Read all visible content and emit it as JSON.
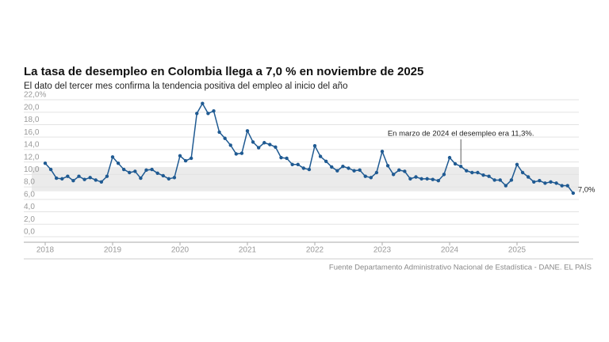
{
  "chart_data": {
    "type": "line",
    "title": "La tasa de desempleo en Colombia llega a 7,0 % en noviembre de 2025",
    "subtitle": "El dato del tercer mes confirma la tendencia positiva del empleo al inicio del año",
    "source": "Fuente Departamento Administrativo Nacional de Estadística - DANE. EL PAÍS",
    "annotation": "En marzo de 2024 el desempleo era 11,3%.",
    "annotation_index": 74,
    "categories": [
      "2018",
      null,
      null,
      null,
      null,
      null,
      null,
      null,
      null,
      null,
      null,
      null,
      "2019",
      null,
      null,
      null,
      null,
      null,
      null,
      null,
      null,
      null,
      null,
      null,
      "2020",
      null,
      null,
      null,
      null,
      null,
      null,
      null,
      null,
      null,
      null,
      null,
      "2021",
      null,
      null,
      null,
      null,
      null,
      null,
      null,
      null,
      null,
      null,
      null,
      "2022",
      null,
      null,
      null,
      null,
      null,
      null,
      null,
      null,
      null,
      null,
      null,
      "2023",
      null,
      null,
      null,
      null,
      null,
      null,
      null,
      null,
      null,
      null,
      null,
      "2024",
      null,
      null,
      null,
      null,
      null,
      null,
      null,
      null,
      null,
      null,
      null,
      "2025",
      null,
      null,
      null,
      null,
      null,
      null,
      null,
      null,
      null,
      null
    ],
    "series": [
      {
        "name": "Tasa de desempleo",
        "color": "#1f5a92",
        "values": [
          11.8,
          10.8,
          9.4,
          9.3,
          9.7,
          9.0,
          9.7,
          9.2,
          9.5,
          9.1,
          8.8,
          9.7,
          12.8,
          11.8,
          10.8,
          10.3,
          10.5,
          9.4,
          10.7,
          10.8,
          10.2,
          9.8,
          9.3,
          9.5,
          13.0,
          12.2,
          12.6,
          19.8,
          21.4,
          19.8,
          20.2,
          16.8,
          15.8,
          14.7,
          13.3,
          13.4,
          17.0,
          15.2,
          14.3,
          15.1,
          14.8,
          14.4,
          12.7,
          12.6,
          11.6,
          11.6,
          11.0,
          10.8,
          14.6,
          12.9,
          12.1,
          11.2,
          10.6,
          11.3,
          11.0,
          10.6,
          10.7,
          9.7,
          9.5,
          10.3,
          13.7,
          11.4,
          10.0,
          10.7,
          10.5,
          9.3,
          9.6,
          9.3,
          9.3,
          9.2,
          9.0,
          10.0,
          12.7,
          11.7,
          11.3,
          10.6,
          10.3,
          10.3,
          9.9,
          9.7,
          9.1,
          9.1,
          8.2,
          9.1,
          11.6,
          10.3,
          9.6,
          8.8,
          9.0,
          8.6,
          8.8,
          8.6,
          8.2,
          8.2,
          7.0
        ],
        "value_labels": [
          null,
          null,
          null,
          null,
          null,
          null,
          null,
          null,
          null,
          null,
          null,
          null,
          null,
          null,
          null,
          null,
          null,
          null,
          null,
          null,
          null,
          null,
          null,
          null,
          null,
          null,
          null,
          null,
          null,
          null,
          null,
          null,
          null,
          null,
          null,
          null,
          null,
          null,
          null,
          null,
          null,
          null,
          null,
          null,
          null,
          null,
          null,
          null,
          null,
          null,
          null,
          null,
          null,
          null,
          null,
          null,
          null,
          null,
          null,
          null,
          null,
          null,
          null,
          null,
          null,
          null,
          null,
          null,
          null,
          null,
          null,
          null,
          null,
          null,
          null,
          null,
          null,
          null,
          null,
          null,
          null,
          null,
          null,
          null,
          null,
          null,
          null,
          null,
          null,
          null,
          null,
          null,
          null,
          null,
          "7,0%"
        ]
      }
    ],
    "shaded_range": [
      7.3,
      11.2
    ],
    "ylim": [
      0,
      22
    ],
    "yticks": [
      {
        "value": 0,
        "label": "0,0"
      },
      {
        "value": 2,
        "label": "2,0"
      },
      {
        "value": 4,
        "label": "4,0"
      },
      {
        "value": 6,
        "label": "6,0"
      },
      {
        "value": 8,
        "label": "8,0"
      },
      {
        "value": 10,
        "label": "10,0"
      },
      {
        "value": 12,
        "label": "12,0"
      },
      {
        "value": 14,
        "label": "14,0"
      },
      {
        "value": 16,
        "label": "16,0"
      },
      {
        "value": 18,
        "label": "18,0"
      },
      {
        "value": 20,
        "label": "20,0"
      },
      {
        "value": 22,
        "label": "22,0%"
      }
    ],
    "grid": true
  }
}
